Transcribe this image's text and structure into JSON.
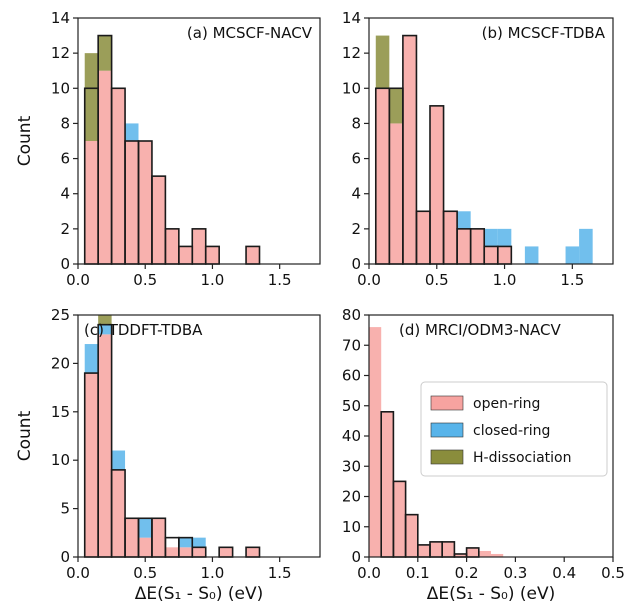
{
  "colors": {
    "open": "#f7a3a0",
    "closed": "#58b4ea",
    "hdiss": "#8a8d3c",
    "edge": "#1a1a1a"
  },
  "legend": {
    "placement": "inside-panel-d-right",
    "entries": [
      {
        "label": "open-ring",
        "color": "#f7a3a0"
      },
      {
        "label": "closed-ring",
        "color": "#58b4ea"
      },
      {
        "label": "H-dissociation",
        "color": "#8a8d3c"
      }
    ]
  },
  "chart_data": [
    {
      "type": "bar",
      "stacked": true,
      "title": "(a) MCSCF-NACV",
      "xlabel": "",
      "ylabel": "Count",
      "xlim": [
        0,
        1.8
      ],
      "ylim": [
        0,
        14
      ],
      "xticks": [
        "0.0",
        "0.5",
        "1.0",
        "1.5"
      ],
      "xtick_values": [
        0,
        0.5,
        1.0,
        1.5
      ],
      "yticks": [
        "0",
        "2",
        "4",
        "6",
        "8",
        "10",
        "12",
        "14"
      ],
      "ytick_values": [
        0,
        2,
        4,
        6,
        8,
        10,
        12,
        14
      ],
      "bin_start": 0.05,
      "bin_width": 0.1,
      "series": [
        {
          "name": "open-ring",
          "values": [
            7,
            11,
            10,
            7,
            7,
            5,
            2,
            1,
            2,
            1,
            0,
            0,
            1,
            0,
            0,
            0,
            0
          ]
        },
        {
          "name": "closed-ring",
          "values": [
            0,
            0,
            0,
            1,
            0,
            0,
            0,
            0,
            0,
            0,
            0,
            0,
            0,
            0,
            0,
            0,
            0
          ]
        },
        {
          "name": "H-dissociation",
          "values": [
            5,
            2,
            0,
            0,
            0,
            0,
            0,
            0,
            0,
            0,
            0,
            0,
            0,
            0,
            0,
            0,
            0
          ]
        }
      ],
      "edge_totals": [
        10,
        13,
        10,
        7,
        7,
        5,
        2,
        1,
        2,
        1,
        0,
        0,
        1,
        0,
        0,
        0,
        0
      ]
    },
    {
      "type": "bar",
      "stacked": true,
      "title": "(b) MCSCF-TDBA",
      "xlabel": "",
      "ylabel": "",
      "xlim": [
        0,
        1.8
      ],
      "ylim": [
        0,
        14
      ],
      "xticks": [
        "0.0",
        "0.5",
        "1.0",
        "1.5"
      ],
      "xtick_values": [
        0,
        0.5,
        1.0,
        1.5
      ],
      "yticks": [
        "0",
        "2",
        "4",
        "6",
        "8",
        "10",
        "12",
        "14"
      ],
      "ytick_values": [
        0,
        2,
        4,
        6,
        8,
        10,
        12,
        14
      ],
      "bin_start": 0.05,
      "bin_width": 0.1,
      "series": [
        {
          "name": "open-ring",
          "values": [
            10,
            8,
            13,
            3,
            9,
            3,
            2,
            2,
            1,
            1,
            0,
            0,
            0,
            0,
            0,
            0
          ]
        },
        {
          "name": "closed-ring",
          "values": [
            0,
            0,
            0,
            0,
            0,
            0,
            1,
            0,
            1,
            1,
            0,
            1,
            0,
            0,
            1,
            2
          ]
        },
        {
          "name": "H-dissociation",
          "values": [
            3,
            2,
            0,
            0,
            0,
            0,
            0,
            0,
            0,
            0,
            0,
            0,
            0,
            0,
            0,
            0
          ]
        }
      ],
      "edge_totals": [
        10,
        10,
        13,
        3,
        9,
        3,
        2,
        2,
        1,
        1,
        0,
        0,
        0,
        0,
        0,
        0
      ]
    },
    {
      "type": "bar",
      "stacked": true,
      "title": "(c) TDDFT-TDBA",
      "xlabel": "ΔE(S₁ - S₀) (eV)",
      "ylabel": "Count",
      "xlim": [
        0,
        1.8
      ],
      "ylim": [
        0,
        25
      ],
      "xticks": [
        "0.0",
        "0.5",
        "1.0",
        "1.5"
      ],
      "xtick_values": [
        0,
        0.5,
        1.0,
        1.5
      ],
      "yticks": [
        "0",
        "5",
        "10",
        "15",
        "20",
        "25"
      ],
      "ytick_values": [
        0,
        5,
        10,
        15,
        20,
        25
      ],
      "bin_start": 0.05,
      "bin_width": 0.1,
      "series": [
        {
          "name": "open-ring",
          "values": [
            19,
            23,
            9,
            4,
            2,
            4,
            1,
            1,
            1,
            0,
            1,
            0,
            1,
            0,
            0,
            0,
            0
          ]
        },
        {
          "name": "closed-ring",
          "values": [
            3,
            1,
            2,
            0,
            2,
            0,
            0,
            1,
            1,
            0,
            0,
            0,
            0,
            0,
            0,
            0,
            0
          ]
        },
        {
          "name": "H-dissociation",
          "values": [
            0,
            1,
            0,
            0,
            0,
            0,
            0,
            0,
            0,
            0,
            0,
            0,
            0,
            0,
            0,
            0,
            0
          ]
        }
      ],
      "edge_totals": [
        19,
        24,
        9,
        4,
        4,
        4,
        2,
        2,
        1,
        0,
        1,
        0,
        1,
        0,
        0,
        0,
        0
      ]
    },
    {
      "type": "bar",
      "stacked": true,
      "title": "(d) MRCI/ODM3-NACV",
      "xlabel": "ΔE(S₁ - S₀) (eV)",
      "ylabel": "",
      "xlim": [
        0,
        0.5
      ],
      "ylim": [
        0,
        80
      ],
      "xticks": [
        "0.0",
        "0.1",
        "0.2",
        "0.3",
        "0.4",
        "0.5"
      ],
      "xtick_values": [
        0,
        0.1,
        0.2,
        0.3,
        0.4,
        0.5
      ],
      "yticks": [
        "0",
        "10",
        "20",
        "30",
        "40",
        "50",
        "60",
        "70",
        "80"
      ],
      "ytick_values": [
        0,
        10,
        20,
        30,
        40,
        50,
        60,
        70,
        80
      ],
      "bin_start": 0.0,
      "bin_width": 0.025,
      "series": [
        {
          "name": "open-ring",
          "values": [
            76,
            48,
            25,
            14,
            4,
            5,
            5,
            1,
            3,
            2,
            1,
            0,
            0,
            0,
            0,
            0,
            0,
            0,
            0,
            0
          ]
        },
        {
          "name": "closed-ring",
          "values": [
            0,
            0,
            0,
            0,
            0,
            0,
            0,
            0,
            0,
            0,
            0,
            0,
            0,
            0,
            0,
            0,
            0,
            0,
            0,
            0
          ]
        },
        {
          "name": "H-dissociation",
          "values": [
            0,
            0,
            0,
            0,
            0,
            0,
            0,
            0,
            0,
            0,
            0,
            0,
            0,
            0,
            0,
            0,
            0,
            0,
            0,
            0
          ]
        }
      ],
      "edge_totals": [
        0,
        48,
        25,
        14,
        4,
        5,
        5,
        1,
        3,
        0,
        0,
        0,
        0,
        0,
        0,
        0,
        0,
        0,
        0,
        0
      ]
    }
  ]
}
